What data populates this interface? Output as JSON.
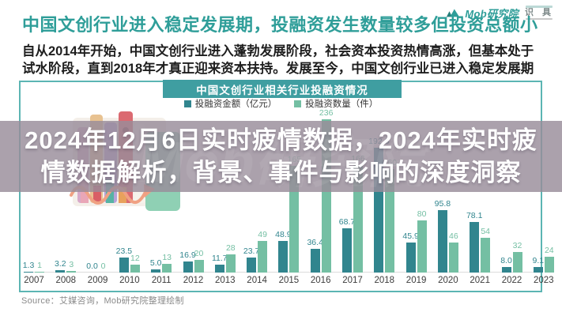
{
  "brand": {
    "logo_text": "Mob研究院",
    "seal_text": "识 具"
  },
  "headline": "中国文创行业进入稳定发展期，投融资发生数量较多但投资总额小",
  "intro": {
    "line1": "自从2014年开始，中国文创行业进入蓬勃发展阶段，社会资本投资热情高涨，但基本处于",
    "line2": "试水阶段，直到2018年才真正迎来资本扶持。发展至今，中国文创行业已进入稳定发展期"
  },
  "panel": {
    "header": "中国文创行业相关行业投融资情况"
  },
  "overlay": {
    "line1": "2024年12月6日实时疲情数据，2024年实时疲",
    "line2": "情数据解析，背景、事件与影响的深度洞察",
    "watermark": "Mob研究院"
  },
  "source": "Source：艾媒咨询，Mob研究院整理绘制",
  "colors": {
    "accent": "#2f9e99",
    "band_bg": "#3f9ea1",
    "box_border": "#5cb5b3",
    "amount_bar": "#31858e",
    "count_bar": "#74bfa3",
    "overlay_bg": "rgba(152,140,154,0.82)"
  },
  "chart_data": {
    "type": "bar",
    "title": "中国文创行业相关行业投融资情况",
    "categories": [
      "2007",
      "2008",
      "2009",
      "2010",
      "2011",
      "2012",
      "2013",
      "2014",
      "2015",
      "2016",
      "2017",
      "2018",
      "2019",
      "2020",
      "2021",
      "2022",
      "2023"
    ],
    "series": [
      {
        "name": "投融资金额（亿元）",
        "color": "#31858e",
        "values": [
          1.3,
          3.2,
          0.0,
          23.5,
          5.0,
          16.9,
          11.7,
          23.7,
          48.9,
          36.4,
          68.7,
          192.6,
          45.9,
          95.8,
          78.1,
          8.0,
          9.1
        ],
        "labels": [
          "1.3",
          "3.2",
          "0.0",
          "23.5",
          "5.0",
          "16.9",
          "11.7",
          "23.7",
          "48.9",
          "36.4",
          "68.7",
          "192.6",
          "45.9",
          "95.8",
          "78.1",
          "8.0",
          "9.1"
        ]
      },
      {
        "name": "投融资数量（件）",
        "color": "#74bfa3",
        "values": [
          1,
          3,
          0,
          12,
          13,
          20,
          28,
          49,
          165,
          236,
          166,
          160,
          80,
          46,
          54,
          32,
          24
        ],
        "labels": [
          "1",
          "3",
          "0",
          "12",
          "13",
          "20",
          "28",
          "49",
          "165",
          "236",
          "166",
          "160",
          "80",
          "46",
          "54",
          "32",
          "24"
        ]
      }
    ],
    "xlabel": "",
    "ylabel": "",
    "ylim": [
      0,
      250
    ],
    "grid": false,
    "legend_position": "top"
  }
}
